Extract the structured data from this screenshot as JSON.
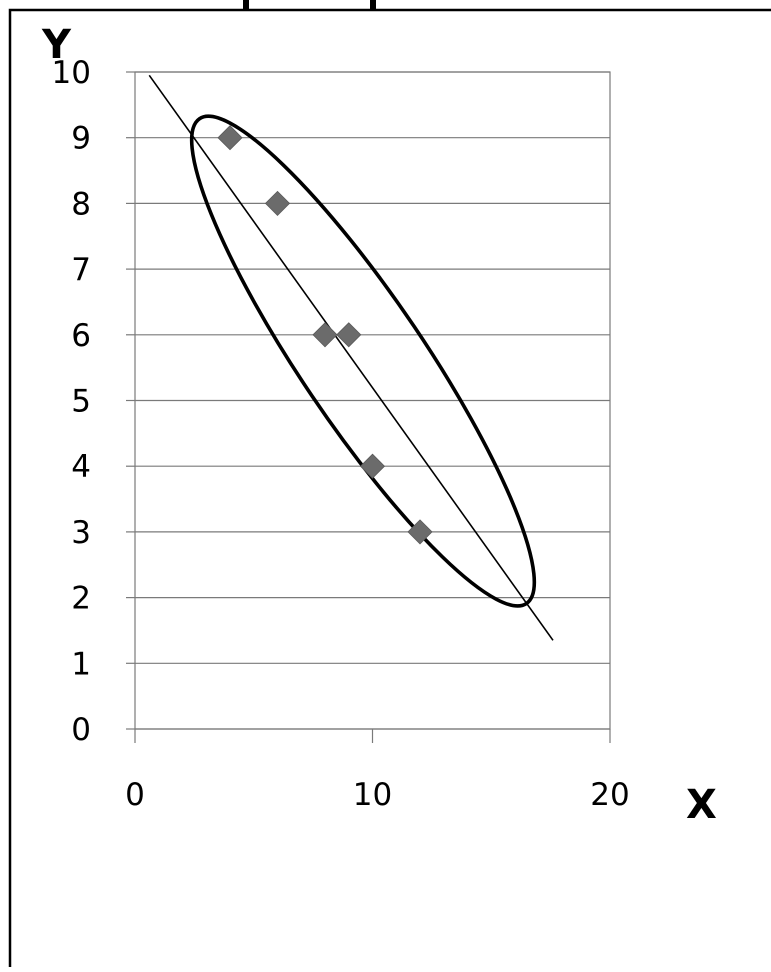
{
  "chart_data": {
    "type": "scatter",
    "title": "",
    "xlabel": "X",
    "ylabel": "Y",
    "xlim": [
      0,
      20
    ],
    "ylim": [
      0,
      10
    ],
    "x_ticks": [
      "0",
      "10",
      "20"
    ],
    "y_ticks": [
      "0",
      "1",
      "2",
      "3",
      "4",
      "5",
      "6",
      "7",
      "8",
      "9",
      "10"
    ],
    "grid": "horizontal",
    "legend": "none",
    "series": [
      {
        "points": [
          {
            "x": 4,
            "y": 9
          },
          {
            "x": 6,
            "y": 8
          },
          {
            "x": 8,
            "y": 6
          },
          {
            "x": 9,
            "y": 6
          },
          {
            "x": 10,
            "y": 4
          },
          {
            "x": 12,
            "y": 3
          }
        ]
      }
    ],
    "trend_line": {
      "from": {
        "x": 0.6,
        "y": 9.95
      },
      "to": {
        "x": 17.6,
        "y": 1.35
      }
    },
    "ellipse": {
      "cx": 9.6,
      "cy": 5.6,
      "rx_data": 2.6,
      "ry_data": 4.45,
      "rotation_deg": -34
    },
    "colors": {
      "marker": "#6b6b6b",
      "gridline": "#7a7a7a",
      "frame": "#000000",
      "line": "#000000"
    }
  }
}
